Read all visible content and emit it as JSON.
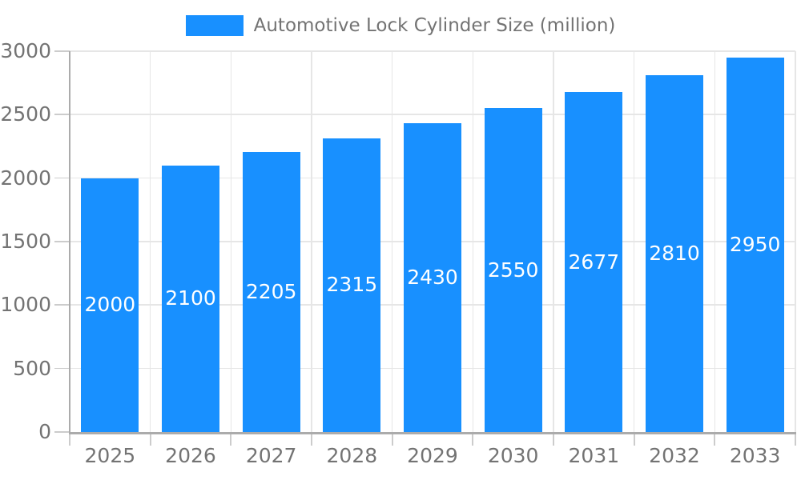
{
  "chart_data": {
    "type": "bar",
    "title": "Automotive Lock Cylinder Size (million)",
    "categories": [
      "2025",
      "2026",
      "2027",
      "2028",
      "2029",
      "2030",
      "2031",
      "2032",
      "2033"
    ],
    "values": [
      2000,
      2100,
      2205,
      2315,
      2430,
      2550,
      2677,
      2810,
      2950
    ],
    "xlabel": "",
    "ylabel": "",
    "ylim": [
      0,
      3000
    ],
    "yticks": [
      0,
      500,
      1000,
      1500,
      2000,
      2500,
      3000
    ],
    "grid": "on",
    "legend_position": "top-center",
    "colors": {
      "bar": "#1890FF",
      "grid_line": "#E6E6E6",
      "axis_line": "#ABABAB",
      "tick_mark": "#CCCCCC",
      "tick_text": "#737373",
      "bar_label_text": "#FFFFFF",
      "background": "#FFFFFF"
    }
  }
}
